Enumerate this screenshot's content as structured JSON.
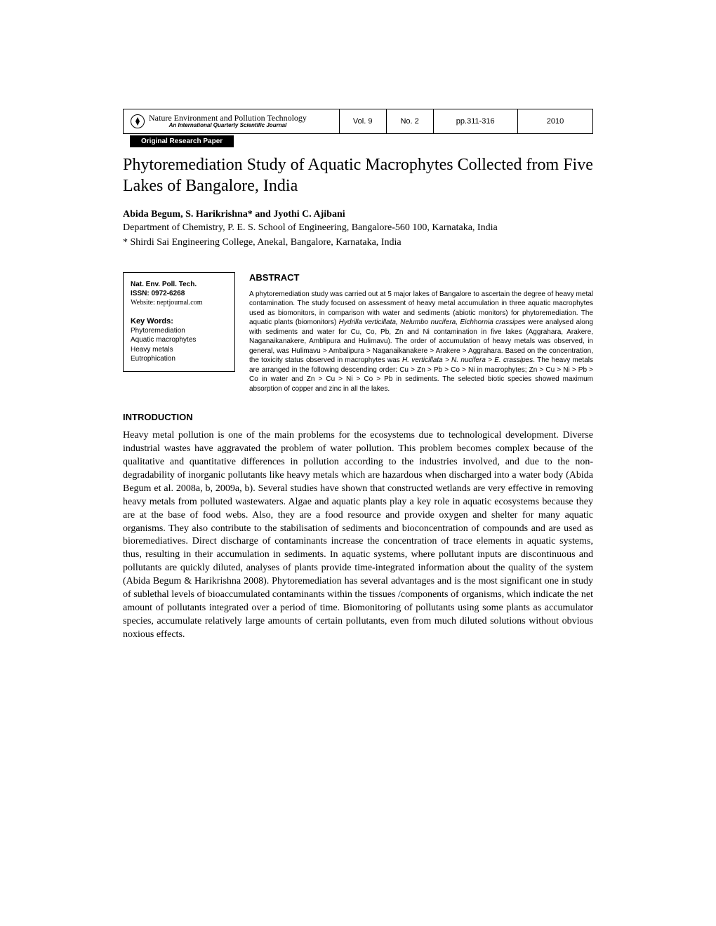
{
  "header": {
    "journal_name": "Nature Environment and Pollution Technology",
    "journal_subtitle": "An International Quarterly Scientific Journal",
    "volume": "Vol. 9",
    "issue": "No. 2",
    "pages": "pp.311-316",
    "year": "2010",
    "paper_type": "Original Research Paper"
  },
  "article": {
    "title": "Phytoremediation Study of Aquatic Macrophytes Collected from Five Lakes of Bangalore, India",
    "authors": "Abida Begum, S. Harikrishna* and Jyothi C. Ajibani",
    "affiliation1": "Department of Chemistry, P. E. S. School of Engineering, Bangalore-560 100, Karnataka, India",
    "affiliation2": "* Shirdi Sai Engineering College, Anekal, Bangalore, Karnataka, India"
  },
  "infobox": {
    "journal_abbrev": "Nat. Env. Poll. Tech.",
    "issn": "ISSN: 0972-6268",
    "website": "Website: neptjournal.com",
    "keywords_heading": "Key Words:",
    "keywords": [
      "Phytoremediation",
      "Aquatic macrophytes",
      "Heavy metals",
      "Eutrophication"
    ]
  },
  "abstract": {
    "heading": "ABSTRACT",
    "text_html": "A phytoremediation study was carried out at 5 major lakes of Bangalore to ascertain the degree of heavy metal contamination. The study focused on assessment of heavy metal accumulation in three aquatic macrophytes used as biomonitors, in comparison with water and sediments (abiotic monitors) for phytoremediation. The aquatic plants (biomonitors) <em>Hydrilla verticillata, Nelumbo nucifera, Eichhornia crassipes</em> were analysed along with sediments and water for Cu, Co, Pb, Zn and Ni contamination in five lakes (Aggrahara, Arakere, Naganaikanakere, Amblipura and Hulimavu). The order of accumulation of heavy metals was observed, in general, was Hulimavu > Ambalipura > Naganaikanakere > Arakere > Aggrahara. Based on the concentration, the toxicity status observed in macrophytes was <em>H. verticillata > N. nucifera > E. crassipes</em>. The heavy metals are arranged in the following descending order: Cu > Zn > Pb > Co > Ni in macrophytes; Zn > Cu > Ni > Pb > Co in water and Zn > Cu > Ni > Co > Pb in sediments. The selected biotic species showed maximum absorption of copper and zinc in all the lakes."
  },
  "introduction": {
    "heading": "INTRODUCTION",
    "text": "Heavy metal pollution is one of the main problems for the ecosystems due to technological development. Diverse industrial wastes have aggravated the problem of water pollution. This problem becomes complex because of the qualitative and quantitative differences in pollution according to the industries involved, and due to the non-degradability of inorganic pollutants like heavy metals which are hazardous when discharged into a water body (Abida Begum et al. 2008a, b, 2009a, b). Several studies have shown that constructed wetlands are very effective in removing heavy metals from polluted wastewaters. Algae and aquatic plants play a key role in aquatic ecosystems because they are at the base of food webs. Also, they are a food  resource and provide oxygen and shelter for many aquatic organisms. They also contribute to the stabilisation of sediments and bioconcentration of compounds and are used as bioremediatives. Direct discharge of contaminants increase the concentration of trace elements in aquatic systems, thus, resulting in their accumulation in sediments. In aquatic systems, where pollutant inputs are discontinuous and pollutants are quickly diluted, analyses of plants provide time-integrated information about the quality of the system (Abida Begum & Harikrishna 2008). Phytoremediation has several advantages and is the most significant one in study of sublethal levels of bioaccumulated contaminants within the tissues /components of organisms, which indicate the net amount of pollutants integrated over a period of time. Biomonitoring of pollutants using some plants as accumulator species, accumulate relatively large amounts of certain pollutants, even from much diluted solutions without obvious noxious effects."
  }
}
